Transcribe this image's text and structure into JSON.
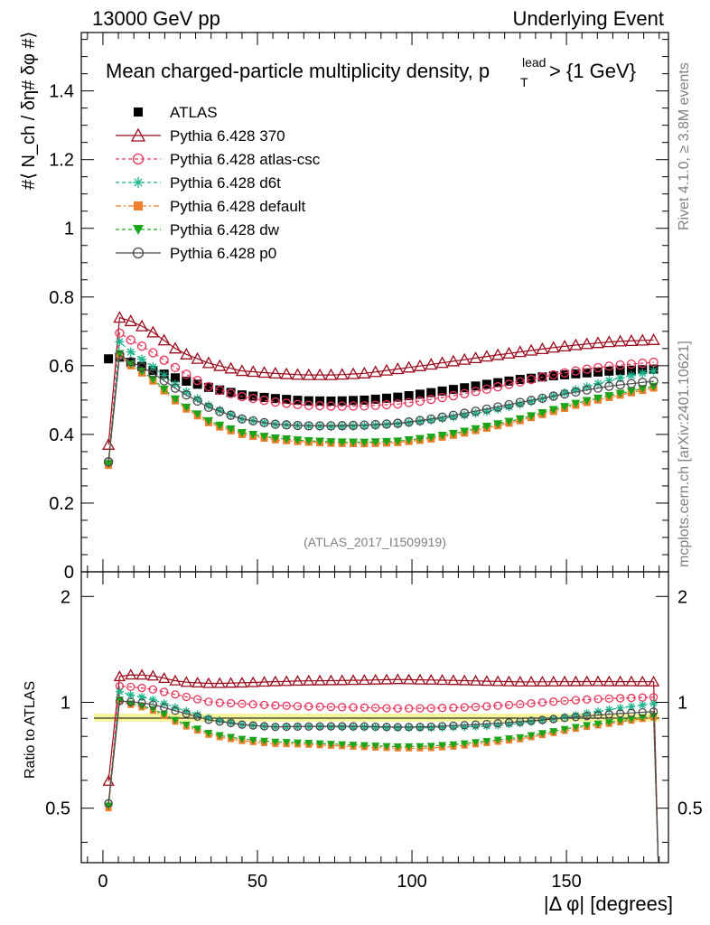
{
  "header": {
    "left": "13000 GeV pp",
    "right": "Underlying Event"
  },
  "side": {
    "rivet": "Rivet 4.1.0, ≥ 3.8M events",
    "mcplots": "mcplots.cern.ch [arXiv:2401.10621]"
  },
  "chart_data": {
    "type": "line",
    "title": "Mean charged-particle multiplicity density, p_T^lead > {1 GeV}",
    "title_main": "Mean charged-particle multiplicity density, p",
    "title_sup": "lead",
    "title_sub": "T",
    "title_tail": " > {1 GeV}",
    "ylabel": "#⟨ N_ch / δη# δφ #⟩",
    "ratio_ylabel": "Ratio to ATLAS",
    "xlabel": "|Δ φ| [degrees]",
    "analysis_id": "(ATLAS_2017_I1509919)",
    "xlim": [
      -7,
      183
    ],
    "ylim": [
      0,
      1.57
    ],
    "ratio_ylim": [
      0.35,
      2.35
    ],
    "x_ticks": [
      0,
      50,
      100,
      150
    ],
    "y_ticks": [
      0,
      0.2,
      0.4,
      0.6,
      0.8,
      1,
      1.2,
      1.4
    ],
    "y_tick_labels": [
      "0",
      "0.2",
      "0.4",
      "0.6",
      "0.8",
      "1",
      "1.2",
      "1.4"
    ],
    "ratio_ticks": [
      0.5,
      1,
      2
    ],
    "ratio_tick_labels": [
      "0.5",
      "1",
      "2"
    ],
    "x_tick_labels": [
      "0",
      "50",
      "100",
      "150"
    ],
    "x_first": 1.8,
    "x_step": 3.6,
    "n_points": 50,
    "reference": {
      "name": "ATLAS",
      "anchors": [
        [
          1.8,
          0.62
        ],
        [
          5.4,
          0.625
        ],
        [
          9,
          0.61
        ],
        [
          15,
          0.59
        ],
        [
          25,
          0.56
        ],
        [
          35,
          0.535
        ],
        [
          45,
          0.515
        ],
        [
          55,
          0.505
        ],
        [
          65,
          0.498
        ],
        [
          75,
          0.497
        ],
        [
          85,
          0.5
        ],
        [
          95,
          0.508
        ],
        [
          105,
          0.52
        ],
        [
          115,
          0.533
        ],
        [
          125,
          0.547
        ],
        [
          135,
          0.56
        ],
        [
          145,
          0.57
        ],
        [
          155,
          0.578
        ],
        [
          165,
          0.585
        ],
        [
          178.2,
          0.59
        ]
      ]
    },
    "series": [
      {
        "name": "Pythia 6.428 370",
        "color": "#9b0a1c",
        "marker": "triangle",
        "dash": "",
        "anchors": [
          [
            1.8,
            0.37
          ],
          [
            5.4,
            0.74
          ],
          [
            9,
            0.73
          ],
          [
            15,
            0.705
          ],
          [
            25,
            0.64
          ],
          [
            35,
            0.605
          ],
          [
            45,
            0.585
          ],
          [
            55,
            0.578
          ],
          [
            65,
            0.573
          ],
          [
            75,
            0.573
          ],
          [
            85,
            0.578
          ],
          [
            95,
            0.59
          ],
          [
            105,
            0.602
          ],
          [
            115,
            0.615
          ],
          [
            125,
            0.628
          ],
          [
            135,
            0.64
          ],
          [
            145,
            0.652
          ],
          [
            155,
            0.662
          ],
          [
            165,
            0.67
          ],
          [
            178.2,
            0.675
          ]
        ]
      },
      {
        "name": "Pythia 6.428 atlas-csc",
        "color": "#e8355a",
        "marker": "circle",
        "dash": "4,3",
        "anchors": [
          [
            1.8,
            0.32
          ],
          [
            5.4,
            0.695
          ],
          [
            9,
            0.675
          ],
          [
            15,
            0.645
          ],
          [
            25,
            0.585
          ],
          [
            35,
            0.535
          ],
          [
            45,
            0.51
          ],
          [
            55,
            0.495
          ],
          [
            65,
            0.485
          ],
          [
            75,
            0.482
          ],
          [
            85,
            0.483
          ],
          [
            95,
            0.488
          ],
          [
            105,
            0.5
          ],
          [
            115,
            0.515
          ],
          [
            125,
            0.533
          ],
          [
            135,
            0.553
          ],
          [
            145,
            0.572
          ],
          [
            155,
            0.588
          ],
          [
            165,
            0.6
          ],
          [
            178.2,
            0.61
          ]
        ]
      },
      {
        "name": "Pythia 6.428 d6t",
        "color": "#19b58c",
        "marker": "star",
        "dash": "4,3",
        "anchors": [
          [
            1.8,
            0.315
          ],
          [
            5.4,
            0.67
          ],
          [
            9,
            0.64
          ],
          [
            15,
            0.605
          ],
          [
            25,
            0.535
          ],
          [
            35,
            0.48
          ],
          [
            45,
            0.445
          ],
          [
            55,
            0.43
          ],
          [
            65,
            0.425
          ],
          [
            75,
            0.423
          ],
          [
            85,
            0.425
          ],
          [
            95,
            0.43
          ],
          [
            105,
            0.44
          ],
          [
            115,
            0.453
          ],
          [
            125,
            0.468
          ],
          [
            135,
            0.488
          ],
          [
            145,
            0.51
          ],
          [
            155,
            0.535
          ],
          [
            165,
            0.56
          ],
          [
            178.2,
            0.585
          ]
        ]
      },
      {
        "name": "Pythia 6.428 default",
        "color": "#f07e2c",
        "marker": "square",
        "dash": "6,3,2,3",
        "anchors": [
          [
            1.8,
            0.31
          ],
          [
            5.4,
            0.63
          ],
          [
            9,
            0.6
          ],
          [
            15,
            0.565
          ],
          [
            25,
            0.485
          ],
          [
            35,
            0.43
          ],
          [
            45,
            0.4
          ],
          [
            55,
            0.385
          ],
          [
            65,
            0.378
          ],
          [
            75,
            0.374
          ],
          [
            85,
            0.373
          ],
          [
            95,
            0.376
          ],
          [
            105,
            0.385
          ],
          [
            115,
            0.4
          ],
          [
            125,
            0.42
          ],
          [
            135,
            0.44
          ],
          [
            145,
            0.465
          ],
          [
            155,
            0.49
          ],
          [
            165,
            0.51
          ],
          [
            178.2,
            0.535
          ]
        ]
      },
      {
        "name": "Pythia 6.428 dw",
        "color": "#1aa61a",
        "marker": "triangledown",
        "dash": "4,3",
        "anchors": [
          [
            1.8,
            0.315
          ],
          [
            5.4,
            0.635
          ],
          [
            9,
            0.605
          ],
          [
            15,
            0.57
          ],
          [
            25,
            0.49
          ],
          [
            35,
            0.435
          ],
          [
            45,
            0.405
          ],
          [
            55,
            0.39
          ],
          [
            65,
            0.382
          ],
          [
            75,
            0.378
          ],
          [
            85,
            0.377
          ],
          [
            95,
            0.38
          ],
          [
            105,
            0.39
          ],
          [
            115,
            0.405
          ],
          [
            125,
            0.425
          ],
          [
            135,
            0.445
          ],
          [
            145,
            0.47
          ],
          [
            155,
            0.495
          ],
          [
            165,
            0.515
          ],
          [
            178.2,
            0.54
          ]
        ]
      },
      {
        "name": "Pythia 6.428 p0",
        "color": "#4a4a4a",
        "marker": "opencircle",
        "dash": "",
        "anchors": [
          [
            1.8,
            0.32
          ],
          [
            5.4,
            0.63
          ],
          [
            9,
            0.612
          ],
          [
            15,
            0.585
          ],
          [
            25,
            0.525
          ],
          [
            35,
            0.475
          ],
          [
            45,
            0.445
          ],
          [
            55,
            0.43
          ],
          [
            65,
            0.425
          ],
          [
            75,
            0.425
          ],
          [
            85,
            0.427
          ],
          [
            95,
            0.432
          ],
          [
            105,
            0.443
          ],
          [
            115,
            0.458
          ],
          [
            125,
            0.475
          ],
          [
            135,
            0.493
          ],
          [
            145,
            0.51
          ],
          [
            155,
            0.527
          ],
          [
            165,
            0.542
          ],
          [
            178.2,
            0.555
          ]
        ]
      }
    ]
  }
}
